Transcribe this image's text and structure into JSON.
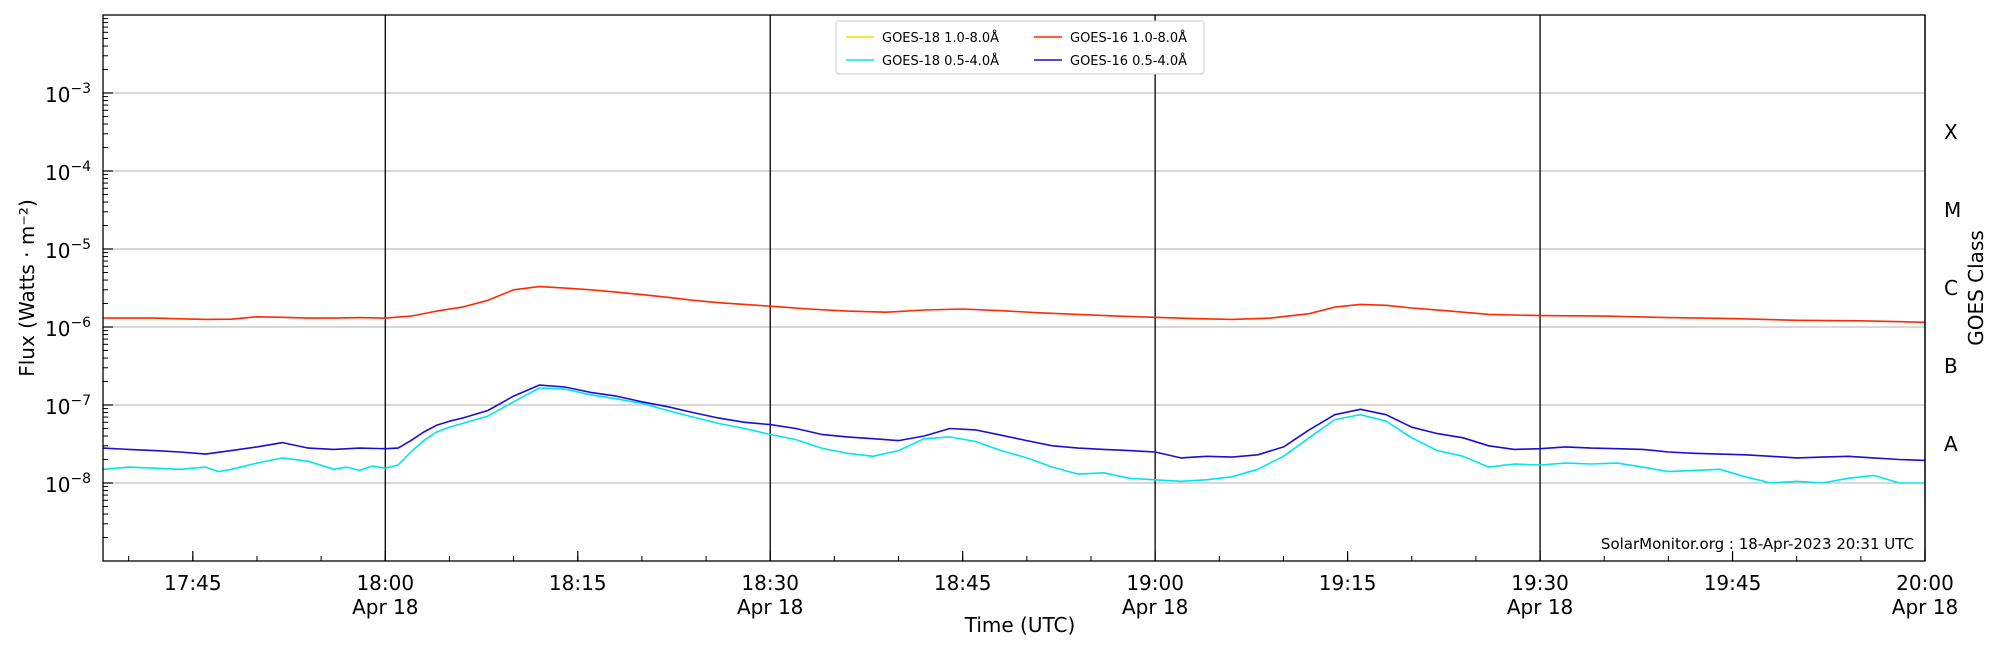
{
  "chart_data": {
    "type": "line",
    "xlabel": "Time (UTC)",
    "ylabel": "Flux (Watts · m⁻²)",
    "y2label": "GOES Class",
    "yscale": "log",
    "ylim": [
      1e-09,
      0.01
    ],
    "xlim": [
      "2023-04-18 17:38",
      "2023-04-18 20:00"
    ],
    "grid": "horizontal at decades",
    "legend_position": "top-center",
    "credit": "SolarMonitor.org : 18-Apr-2023 20:31 UTC",
    "ytick_base": "10",
    "yticks": [
      {
        "value": 1e-08,
        "exp": "−8"
      },
      {
        "value": 1e-07,
        "exp": "−7"
      },
      {
        "value": 1e-06,
        "exp": "−6"
      },
      {
        "value": 1e-05,
        "exp": "−5"
      },
      {
        "value": 0.0001,
        "exp": "−4"
      },
      {
        "value": 0.001,
        "exp": "−3"
      }
    ],
    "classes": [
      {
        "label": "A",
        "value": 3.16e-08
      },
      {
        "label": "B",
        "value": 3.16e-07
      },
      {
        "label": "C",
        "value": 3.16e-06
      },
      {
        "label": "M",
        "value": 3.16e-05
      },
      {
        "label": "X",
        "value": 0.000316
      }
    ],
    "xticks": [
      {
        "time": "17:45",
        "label": "17:45",
        "date": ""
      },
      {
        "time": "18:00",
        "label": "18:00",
        "date": "Apr 18"
      },
      {
        "time": "18:15",
        "label": "18:15",
        "date": ""
      },
      {
        "time": "18:30",
        "label": "18:30",
        "date": "Apr 18"
      },
      {
        "time": "18:45",
        "label": "18:45",
        "date": ""
      },
      {
        "time": "19:00",
        "label": "19:00",
        "date": "Apr 18"
      },
      {
        "time": "19:15",
        "label": "19:15",
        "date": ""
      },
      {
        "time": "19:30",
        "label": "19:30",
        "date": "Apr 18"
      },
      {
        "time": "19:45",
        "label": "19:45",
        "date": ""
      },
      {
        "time": "20:00",
        "label": "20:00",
        "date": "Apr 18"
      }
    ],
    "vlines": [
      "18:00",
      "18:30",
      "19:00",
      "19:30",
      "20:00"
    ],
    "series": [
      {
        "name": "GOES-18 1.0-8.0Å",
        "color": "#ffd700",
        "x": [],
        "values": []
      },
      {
        "name": "GOES-18 0.5-4.0Å",
        "color": "#00e5ee",
        "x": [
          "17:38",
          "17:40",
          "17:42",
          "17:44",
          "17:46",
          "17:47",
          "17:48",
          "17:50",
          "17:52",
          "17:54",
          "17:56",
          "17:57",
          "17:58",
          "17:59",
          "18:00",
          "18:01",
          "18:02",
          "18:03",
          "18:04",
          "18:05",
          "18:06",
          "18:08",
          "18:10",
          "18:12",
          "18:14",
          "18:16",
          "18:18",
          "18:20",
          "18:22",
          "18:24",
          "18:26",
          "18:28",
          "18:30",
          "18:32",
          "18:34",
          "18:36",
          "18:38",
          "18:40",
          "18:42",
          "18:44",
          "18:46",
          "18:48",
          "18:50",
          "18:52",
          "18:54",
          "18:56",
          "18:58",
          "19:00",
          "19:02",
          "19:04",
          "19:06",
          "19:08",
          "19:10",
          "19:12",
          "19:14",
          "19:16",
          "19:18",
          "19:20",
          "19:22",
          "19:24",
          "19:26",
          "19:28",
          "19:30",
          "19:32",
          "19:34",
          "19:36",
          "19:38",
          "19:40",
          "19:42",
          "19:44",
          "19:46",
          "19:48",
          "19:50",
          "19:52",
          "19:54",
          "19:56",
          "19:58",
          "20:00"
        ],
        "values": [
          1.5e-08,
          1.6e-08,
          1.55e-08,
          1.5e-08,
          1.6e-08,
          1.4e-08,
          1.5e-08,
          1.8e-08,
          2.1e-08,
          1.9e-08,
          1.5e-08,
          1.6e-08,
          1.45e-08,
          1.65e-08,
          1.55e-08,
          1.7e-08,
          2.5e-08,
          3.5e-08,
          4.5e-08,
          5.2e-08,
          5.8e-08,
          7.2e-08,
          1.1e-07,
          1.65e-07,
          1.6e-07,
          1.35e-07,
          1.2e-07,
          1.05e-07,
          8.5e-08,
          7e-08,
          5.8e-08,
          5e-08,
          4.2e-08,
          3.6e-08,
          2.8e-08,
          2.4e-08,
          2.2e-08,
          2.6e-08,
          3.7e-08,
          3.9e-08,
          3.4e-08,
          2.6e-08,
          2.1e-08,
          1.6e-08,
          1.3e-08,
          1.35e-08,
          1.15e-08,
          1.1e-08,
          1.05e-08,
          1.1e-08,
          1.2e-08,
          1.5e-08,
          2.2e-08,
          3.8e-08,
          6.5e-08,
          7.5e-08,
          6.2e-08,
          3.8e-08,
          2.6e-08,
          2.2e-08,
          1.6e-08,
          1.75e-08,
          1.7e-08,
          1.8e-08,
          1.75e-08,
          1.8e-08,
          1.6e-08,
          1.4e-08,
          1.45e-08,
          1.5e-08,
          1.2e-08,
          1e-08,
          1.05e-08,
          1e-08,
          1.15e-08,
          1.25e-08,
          1e-08,
          1e-08
        ]
      },
      {
        "name": "GOES-16 1.0-8.0Å",
        "color": "#ff2a00",
        "x": [
          "17:38",
          "17:42",
          "17:46",
          "17:48",
          "17:50",
          "17:52",
          "17:54",
          "17:56",
          "17:58",
          "18:00",
          "18:02",
          "18:04",
          "18:06",
          "18:08",
          "18:10",
          "18:12",
          "18:14",
          "18:16",
          "18:18",
          "18:20",
          "18:22",
          "18:24",
          "18:26",
          "18:28",
          "18:30",
          "18:33",
          "18:36",
          "18:39",
          "18:42",
          "18:45",
          "18:48",
          "18:51",
          "18:54",
          "18:57",
          "19:00",
          "19:03",
          "19:06",
          "19:09",
          "19:12",
          "19:14",
          "19:16",
          "19:18",
          "19:20",
          "19:23",
          "19:26",
          "19:30",
          "19:35",
          "19:40",
          "19:45",
          "19:50",
          "19:55",
          "20:00"
        ],
        "values": [
          1.3e-06,
          1.3e-06,
          1.25e-06,
          1.26e-06,
          1.35e-06,
          1.33e-06,
          1.3e-06,
          1.3e-06,
          1.32e-06,
          1.3e-06,
          1.38e-06,
          1.6e-06,
          1.8e-06,
          2.2e-06,
          3e-06,
          3.3e-06,
          3.15e-06,
          3e-06,
          2.8e-06,
          2.6e-06,
          2.4e-06,
          2.2e-06,
          2.05e-06,
          1.95e-06,
          1.85e-06,
          1.7e-06,
          1.6e-06,
          1.55e-06,
          1.65e-06,
          1.7e-06,
          1.62e-06,
          1.52e-06,
          1.45e-06,
          1.38e-06,
          1.33e-06,
          1.28e-06,
          1.25e-06,
          1.3e-06,
          1.48e-06,
          1.8e-06,
          1.95e-06,
          1.9e-06,
          1.75e-06,
          1.6e-06,
          1.45e-06,
          1.4e-06,
          1.38e-06,
          1.32e-06,
          1.28e-06,
          1.22e-06,
          1.2e-06,
          1.15e-06
        ]
      },
      {
        "name": "GOES-16 0.5-4.0Å",
        "color": "#1a0fd6",
        "x": [
          "17:38",
          "17:40",
          "17:42",
          "17:44",
          "17:46",
          "17:48",
          "17:50",
          "17:52",
          "17:54",
          "17:56",
          "17:58",
          "18:00",
          "18:01",
          "18:02",
          "18:03",
          "18:04",
          "18:05",
          "18:06",
          "18:08",
          "18:10",
          "18:12",
          "18:14",
          "18:16",
          "18:18",
          "18:20",
          "18:22",
          "18:24",
          "18:26",
          "18:28",
          "18:30",
          "18:32",
          "18:34",
          "18:36",
          "18:38",
          "18:40",
          "18:42",
          "18:44",
          "18:46",
          "18:48",
          "18:50",
          "18:52",
          "18:54",
          "18:56",
          "18:58",
          "19:00",
          "19:02",
          "19:04",
          "19:06",
          "19:08",
          "19:10",
          "19:12",
          "19:14",
          "19:16",
          "19:18",
          "19:20",
          "19:22",
          "19:24",
          "19:26",
          "19:28",
          "19:30",
          "19:32",
          "19:34",
          "19:36",
          "19:38",
          "19:40",
          "19:42",
          "19:44",
          "19:46",
          "19:48",
          "19:50",
          "19:52",
          "19:54",
          "19:56",
          "19:58",
          "20:00"
        ],
        "values": [
          2.8e-08,
          2.7e-08,
          2.6e-08,
          2.5e-08,
          2.35e-08,
          2.6e-08,
          2.9e-08,
          3.3e-08,
          2.8e-08,
          2.7e-08,
          2.8e-08,
          2.75e-08,
          2.8e-08,
          3.5e-08,
          4.5e-08,
          5.5e-08,
          6.2e-08,
          6.8e-08,
          8.5e-08,
          1.3e-07,
          1.8e-07,
          1.7e-07,
          1.45e-07,
          1.3e-07,
          1.1e-07,
          9.5e-08,
          8e-08,
          6.8e-08,
          6e-08,
          5.6e-08,
          5e-08,
          4.2e-08,
          3.9e-08,
          3.7e-08,
          3.5e-08,
          4e-08,
          5e-08,
          4.8e-08,
          4.1e-08,
          3.5e-08,
          3e-08,
          2.8e-08,
          2.7e-08,
          2.6e-08,
          2.5e-08,
          2.1e-08,
          2.2e-08,
          2.15e-08,
          2.3e-08,
          2.9e-08,
          4.8e-08,
          7.5e-08,
          8.8e-08,
          7.5e-08,
          5.2e-08,
          4.3e-08,
          3.8e-08,
          3e-08,
          2.7e-08,
          2.75e-08,
          2.9e-08,
          2.8e-08,
          2.75e-08,
          2.7e-08,
          2.5e-08,
          2.4e-08,
          2.35e-08,
          2.3e-08,
          2.2e-08,
          2.1e-08,
          2.15e-08,
          2.2e-08,
          2.1e-08,
          2e-08,
          1.95e-08
        ]
      }
    ]
  }
}
